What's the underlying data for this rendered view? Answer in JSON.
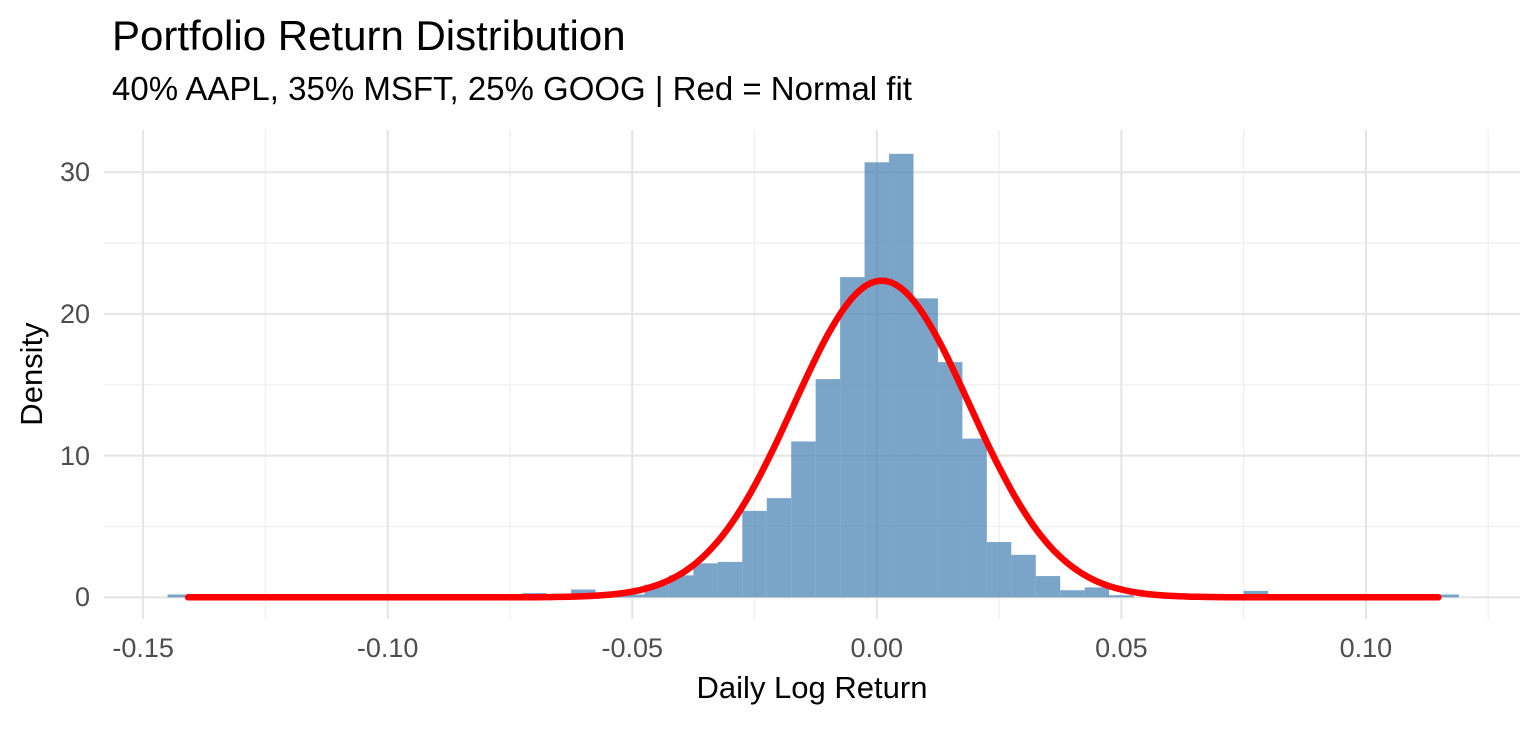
{
  "chart_data": {
    "type": "bar",
    "subtype": "histogram_with_density_curve",
    "title": "Portfolio Return Distribution",
    "subtitle": "40% AAPL, 35% MSFT, 25% GOOG | Red = Normal fit",
    "xlabel": "Daily Log Return",
    "ylabel": "Density",
    "legend": "none",
    "grid": "major and minor, light gray on white",
    "x_axis": {
      "domain": [
        -0.158,
        0.1315
      ],
      "ticks": [
        -0.15,
        -0.1,
        -0.05,
        0.0,
        0.05,
        0.1
      ],
      "tick_labels": [
        "-0.15",
        "-0.10",
        "-0.05",
        "0.00",
        "0.05",
        "0.10"
      ],
      "minor_ticks": [
        -0.125,
        -0.075,
        -0.025,
        0.025,
        0.075,
        0.125
      ]
    },
    "y_axis": {
      "domain": [
        -1.53,
        32.98
      ],
      "ticks": [
        0,
        10,
        20,
        30
      ],
      "tick_labels": [
        "0",
        "10",
        "20",
        "30"
      ],
      "minor_ticks": [
        5,
        15,
        25
      ]
    },
    "histogram": {
      "binwidth": 0.005,
      "bars_center_density": [
        [
          -0.1425,
          0.2
        ],
        [
          -0.07,
          0.3
        ],
        [
          -0.06,
          0.55
        ],
        [
          -0.055,
          0.35
        ],
        [
          -0.05,
          0.2
        ],
        [
          -0.045,
          0.9
        ],
        [
          -0.04,
          1.55
        ],
        [
          -0.035,
          2.4
        ],
        [
          -0.03,
          2.5
        ],
        [
          -0.025,
          6.1
        ],
        [
          -0.02,
          7.0
        ],
        [
          -0.015,
          11.0
        ],
        [
          -0.01,
          15.4
        ],
        [
          -0.005,
          22.6
        ],
        [
          0.0,
          30.7
        ],
        [
          0.005,
          31.3
        ],
        [
          0.01,
          21.1
        ],
        [
          0.015,
          16.6
        ],
        [
          0.02,
          11.2
        ],
        [
          0.025,
          3.9
        ],
        [
          0.03,
          3.0
        ],
        [
          0.035,
          1.5
        ],
        [
          0.04,
          0.5
        ],
        [
          0.045,
          0.7
        ],
        [
          0.05,
          0.15
        ],
        [
          0.0575,
          0.3
        ],
        [
          0.0775,
          0.45
        ],
        [
          0.1165,
          0.2
        ]
      ]
    },
    "normal_fit": {
      "mean": 0.001,
      "sd": 0.018,
      "peak_density": 22.35,
      "x_start": -0.1408,
      "x_end": 0.1148
    },
    "colors": {
      "bar_fill": "#4682B4",
      "bar_opacity": 0.72,
      "curve": "#FF0000",
      "grid_major": "#E4E4E4",
      "grid_minor": "#F0F0F0",
      "tick_text": "#4D4D4D",
      "title_text": "#000000",
      "background": "#FFFFFF"
    }
  }
}
